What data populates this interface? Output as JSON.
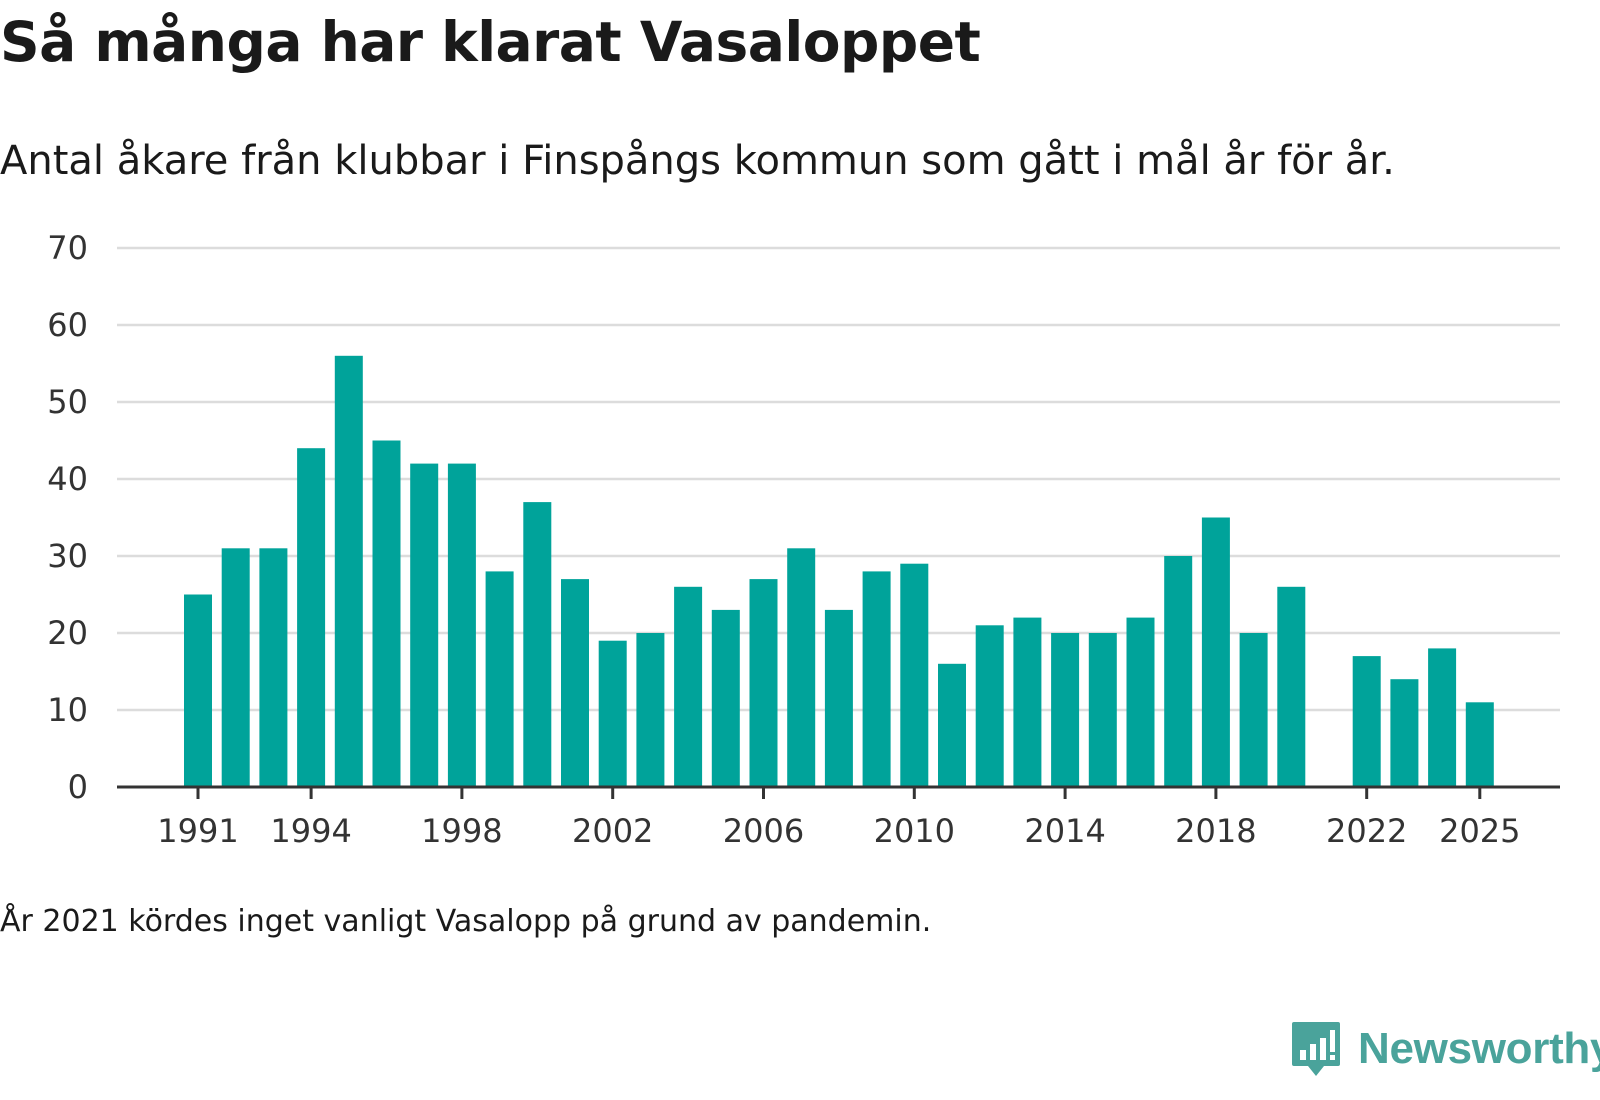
{
  "title": "Så många har klarat Vasaloppet",
  "subtitle": "Antal åkare från klubbar i Finspångs kommun som gått i mål år för år.",
  "footnote": "År 2021 kördes inget vanligt Vasalopp på grund av pandemin.",
  "brand": {
    "name": "Newsworthy",
    "icon": "newsworthy-logo-icon",
    "color": "#4aa39b"
  },
  "chart_data": {
    "type": "bar",
    "title": "Så många har klarat Vasaloppet",
    "xlabel": "",
    "ylabel": "",
    "bar_color": "#00a39a",
    "categories": [
      "1991",
      "1992",
      "1993",
      "1994",
      "1995",
      "1996",
      "1997",
      "1998",
      "1999",
      "2000",
      "2001",
      "2002",
      "2003",
      "2004",
      "2005",
      "2006",
      "2007",
      "2008",
      "2009",
      "2010",
      "2011",
      "2012",
      "2013",
      "2014",
      "2015",
      "2016",
      "2017",
      "2018",
      "2019",
      "2020",
      "2021",
      "2022",
      "2023",
      "2024",
      "2025"
    ],
    "values": [
      25,
      31,
      31,
      44,
      56,
      45,
      42,
      42,
      28,
      37,
      27,
      19,
      20,
      26,
      23,
      27,
      31,
      23,
      28,
      29,
      16,
      21,
      22,
      20,
      20,
      22,
      30,
      35,
      20,
      26,
      null,
      17,
      14,
      18,
      11
    ],
    "x_tick_labels": [
      "1991",
      "1994",
      "1998",
      "2002",
      "2006",
      "2010",
      "2014",
      "2018",
      "2022",
      "2025"
    ],
    "y_ticks": [
      0,
      10,
      20,
      30,
      40,
      50,
      60,
      70
    ],
    "ylim": [
      0,
      70
    ],
    "grid": true
  }
}
